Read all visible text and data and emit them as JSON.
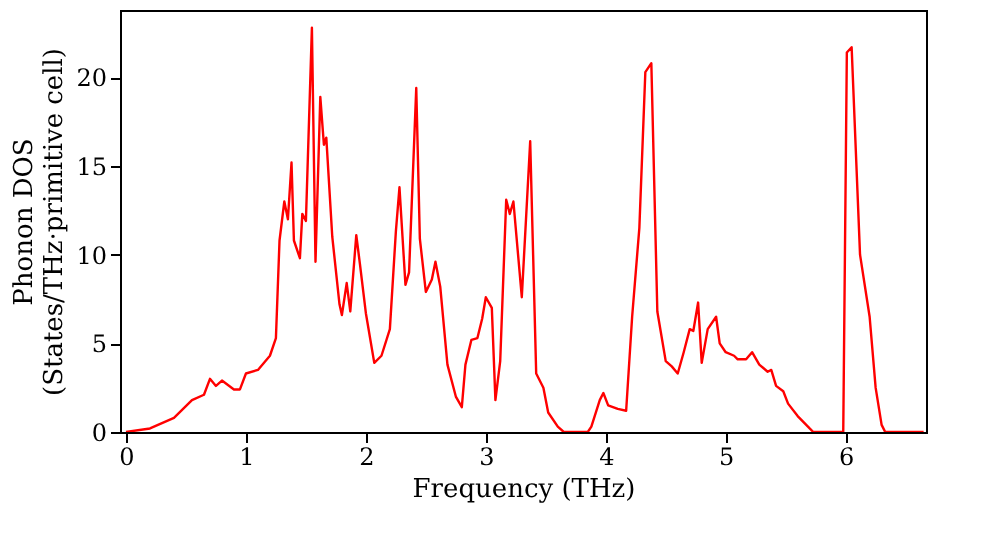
{
  "chart_data": {
    "type": "line",
    "xlabel": "Frequency (THz)",
    "ylabel": "Phonon DOS\n(States/THz·primitive cell)",
    "xlim": [
      -0.05,
      6.67
    ],
    "xticks": [
      0,
      1,
      2,
      3,
      4,
      5,
      6
    ],
    "ylim": [
      0,
      23.8
    ],
    "yticks": [
      0,
      5,
      10,
      15,
      20
    ],
    "grid": false,
    "line_style": "solid",
    "series": [
      {
        "color": "#ff0000",
        "x": [
          0,
          0.2,
          0.4,
          0.55,
          0.65,
          0.7,
          0.75,
          0.8,
          0.9,
          0.95,
          1.0,
          1.1,
          1.2,
          1.25,
          1.28,
          1.32,
          1.35,
          1.38,
          1.4,
          1.45,
          1.47,
          1.5,
          1.55,
          1.58,
          1.62,
          1.65,
          1.67,
          1.72,
          1.78,
          1.8,
          1.84,
          1.87,
          1.92,
          1.95,
          2.0,
          2.07,
          2.13,
          2.2,
          2.25,
          2.28,
          2.33,
          2.36,
          2.42,
          2.45,
          2.5,
          2.55,
          2.58,
          2.62,
          2.68,
          2.75,
          2.8,
          2.83,
          2.88,
          2.93,
          2.97,
          3.0,
          3.05,
          3.08,
          3.12,
          3.17,
          3.2,
          3.23,
          3.3,
          3.37,
          3.42,
          3.48,
          3.52,
          3.6,
          3.65,
          3.85,
          3.88,
          3.95,
          3.98,
          4.02,
          4.1,
          4.17,
          4.22,
          4.28,
          4.33,
          4.38,
          4.43,
          4.5,
          4.55,
          4.6,
          4.65,
          4.7,
          4.73,
          4.77,
          4.8,
          4.85,
          4.92,
          4.95,
          5.0,
          5.07,
          5.1,
          5.17,
          5.22,
          5.28,
          5.35,
          5.38,
          5.42,
          5.48,
          5.52,
          5.6,
          5.7,
          5.73,
          5.98,
          6.01,
          6.05,
          6.12,
          6.2,
          6.25,
          6.3,
          6.33,
          6.65
        ],
        "values": [
          0,
          0.2,
          0.8,
          1.8,
          2.1,
          3.0,
          2.6,
          2.9,
          2.4,
          2.4,
          3.3,
          3.5,
          4.3,
          5.3,
          10.8,
          13,
          12,
          15.2,
          10.8,
          9.8,
          12.3,
          11.9,
          22.8,
          9.6,
          18.9,
          16.2,
          16.6,
          11,
          7.2,
          6.6,
          8.4,
          6.8,
          11.1,
          9.5,
          6.7,
          3.9,
          4.3,
          5.8,
          11.3,
          13.8,
          8.3,
          9.0,
          19.4,
          10.9,
          7.9,
          8.6,
          9.6,
          8.2,
          3.8,
          2.0,
          1.4,
          3.8,
          5.2,
          5.3,
          6.4,
          7.6,
          7.0,
          1.8,
          4.0,
          13.1,
          12.3,
          13.0,
          7.6,
          16.4,
          3.3,
          2.5,
          1.1,
          0.3,
          0,
          0,
          0.3,
          1.8,
          2.2,
          1.5,
          1.3,
          1.2,
          6.5,
          11.5,
          20.3,
          20.8,
          6.8,
          4.0,
          3.7,
          3.3,
          4.5,
          5.8,
          5.7,
          7.3,
          3.9,
          5.8,
          6.5,
          5.0,
          4.5,
          4.3,
          4.1,
          4.1,
          4.5,
          3.8,
          3.4,
          3.5,
          2.6,
          2.3,
          1.6,
          0.9,
          0.2,
          0,
          0,
          21.4,
          21.7,
          10,
          6.5,
          2.5,
          0.4,
          0,
          0
        ]
      }
    ]
  }
}
